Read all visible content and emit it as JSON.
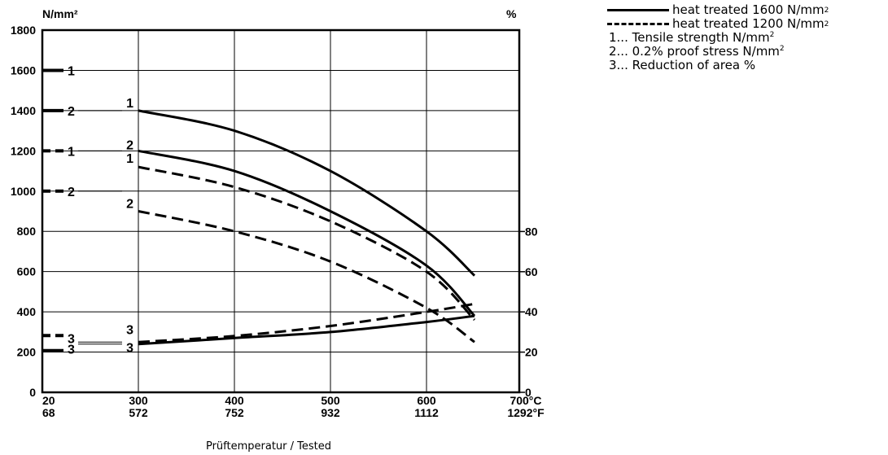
{
  "chart_data": {
    "type": "line",
    "ylabel_left": "N/mm²",
    "ylabel_right": "%",
    "xlabel": "Prüftemperatur / Tested",
    "left_axis": {
      "ylim": [
        0,
        1800
      ],
      "ticks": [
        "0",
        "200",
        "400",
        "600",
        "800",
        "1000",
        "1200",
        "1400",
        "1600",
        "1800"
      ]
    },
    "right_axis": {
      "ylim": [
        0,
        90
      ],
      "ticks": [
        "0",
        "20",
        "40",
        "60",
        "80"
      ]
    },
    "x_ticks": [
      {
        "value": 20,
        "celsius": "20",
        "fahrenheit": "68"
      },
      {
        "value": 300,
        "celsius": "300",
        "fahrenheit": "572"
      },
      {
        "value": 400,
        "celsius": "400",
        "fahrenheit": "752"
      },
      {
        "value": 500,
        "celsius": "500",
        "fahrenheit": "932"
      },
      {
        "value": 600,
        "celsius": "600",
        "fahrenheit": "1112"
      },
      {
        "value": 700,
        "celsius": "700°C",
        "fahrenheit": "1292°F"
      }
    ],
    "grid": true,
    "legend": {
      "solid_text": "heat treated 1600 N/mm",
      "dashed_text": "heat treated 1200 N/mm",
      "sup": "2",
      "notes": [
        {
          "text": "1... Tensile strength N/mm",
          "sup": "2"
        },
        {
          "text": "2... 0.2% proof stress N/mm",
          "sup": "2"
        },
        {
          "text": "3... Reduction of area %",
          "sup": ""
        }
      ]
    },
    "series": [
      {
        "label": "1",
        "style": "solid",
        "axis": "left",
        "x": [
          300,
          400,
          500,
          600,
          650
        ],
        "y": [
          1400,
          1300,
          1100,
          800,
          580
        ]
      },
      {
        "label": "2",
        "style": "solid",
        "axis": "left",
        "x": [
          300,
          400,
          500,
          600,
          650
        ],
        "y": [
          1200,
          1100,
          900,
          630,
          380
        ]
      },
      {
        "label": "3",
        "style": "solid",
        "axis": "right",
        "x": [
          300,
          400,
          500,
          600,
          650
        ],
        "y": [
          24,
          27,
          30,
          35,
          38
        ]
      },
      {
        "label": "1",
        "style": "dashed",
        "axis": "left",
        "x": [
          300,
          400,
          500,
          600,
          650
        ],
        "y": [
          1120,
          1020,
          850,
          600,
          360
        ]
      },
      {
        "label": "2",
        "style": "dashed",
        "axis": "left",
        "x": [
          300,
          400,
          500,
          600,
          650
        ],
        "y": [
          900,
          800,
          650,
          420,
          250
        ]
      },
      {
        "label": "3",
        "style": "dashed",
        "axis": "right",
        "x": [
          300,
          400,
          500,
          600,
          650
        ],
        "y": [
          25,
          28,
          33,
          40,
          44
        ]
      }
    ],
    "room_temperature": [
      {
        "label": "1",
        "style": "solid",
        "axis": "left",
        "y": 1600
      },
      {
        "label": "2",
        "style": "solid",
        "axis": "left",
        "y": 1400
      },
      {
        "label": "1",
        "style": "dashed",
        "axis": "left",
        "y": 1200
      },
      {
        "label": "2",
        "style": "dashed",
        "axis": "left",
        "y": 1000
      },
      {
        "label": "3",
        "style": "dashed",
        "axis": "right",
        "y": 25
      },
      {
        "label": "3",
        "style": "solid",
        "axis": "right",
        "y": 24
      }
    ]
  }
}
